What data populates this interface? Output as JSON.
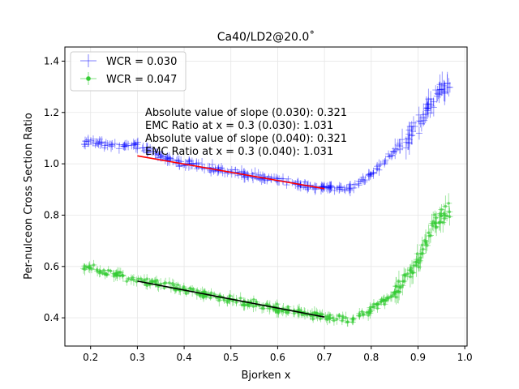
{
  "chart_data": {
    "type": "scatter",
    "title": "Ca40/LD2@20.0˚",
    "xlabel": "Bjorken x",
    "ylabel": "Per-nulceon Cross Section Ratio",
    "xlim": [
      0.145,
      1.005
    ],
    "ylim": [
      0.29,
      1.455
    ],
    "xticks": [
      "0.2",
      "0.3",
      "0.4",
      "0.5",
      "0.6",
      "0.7",
      "0.8",
      "0.9",
      "1.0"
    ],
    "yticks": [
      "0.4",
      "0.6",
      "0.8",
      "1.0",
      "1.2",
      "1.4"
    ],
    "grid": true,
    "legend_position": "top-left",
    "series": [
      {
        "name": "WCR = 0.030",
        "color": "#0000ff",
        "marker": "+",
        "trend": [
          [
            0.2,
            1.083
          ],
          [
            0.3,
            1.07
          ],
          [
            0.35,
            1.03
          ],
          [
            0.4,
            1.0
          ],
          [
            0.5,
            0.967
          ],
          [
            0.6,
            0.935
          ],
          [
            0.7,
            0.905
          ],
          [
            0.75,
            0.905
          ],
          [
            0.8,
            0.96
          ],
          [
            0.85,
            1.05
          ],
          [
            0.9,
            1.15
          ],
          [
            0.93,
            1.25
          ],
          [
            0.97,
            1.31
          ]
        ]
      },
      {
        "name": "WCR = 0.047",
        "color": "#33cc33",
        "marker": "*",
        "trend": [
          [
            0.2,
            0.592
          ],
          [
            0.3,
            0.545
          ],
          [
            0.4,
            0.51
          ],
          [
            0.5,
            0.47
          ],
          [
            0.6,
            0.435
          ],
          [
            0.7,
            0.405
          ],
          [
            0.75,
            0.39
          ],
          [
            0.8,
            0.43
          ],
          [
            0.85,
            0.5
          ],
          [
            0.9,
            0.62
          ],
          [
            0.93,
            0.75
          ],
          [
            0.97,
            0.83
          ]
        ]
      }
    ],
    "fits": [
      {
        "color": "#ff0000",
        "x": [
          0.3,
          0.7
        ],
        "y": [
          1.031,
          0.903
        ]
      },
      {
        "color": "#000000",
        "x": [
          0.3,
          0.7
        ],
        "y": [
          0.543,
          0.403
        ]
      }
    ],
    "annotations": [
      "Absolute value of slope (0.030): 0.321",
      "EMC Ratio at x = 0.3 (0.030): 1.031",
      "Absolute value of slope (0.040): 0.321",
      "EMC Ratio at x = 0.3 (0.040): 1.031"
    ]
  }
}
